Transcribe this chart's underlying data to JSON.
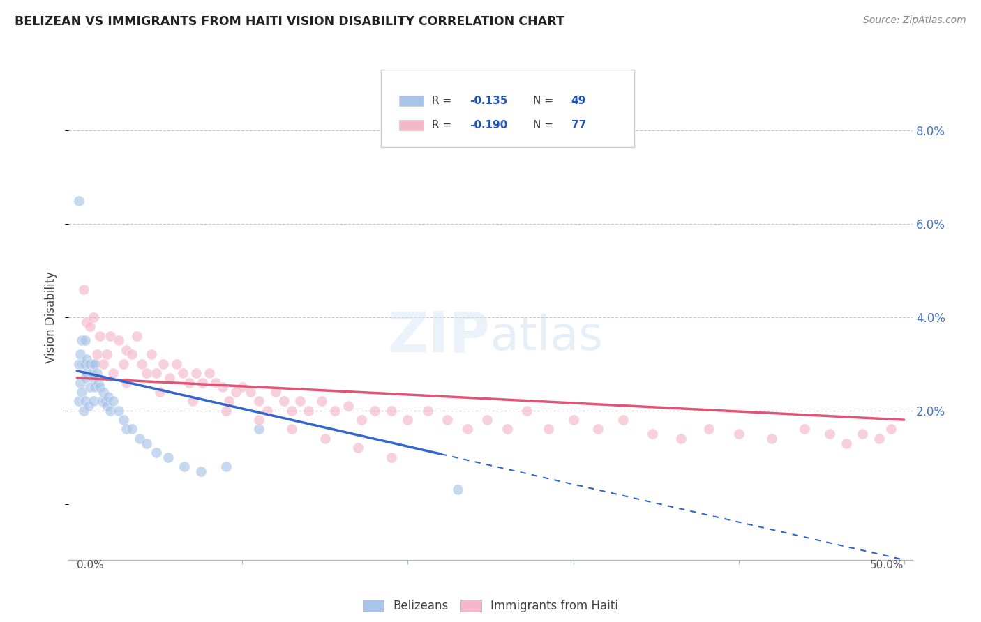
{
  "title": "BELIZEAN VS IMMIGRANTS FROM HAITI VISION DISABILITY CORRELATION CHART",
  "source": "Source: ZipAtlas.com",
  "ylabel": "Vision Disability",
  "right_yticks": [
    "2.0%",
    "4.0%",
    "6.0%",
    "8.0%"
  ],
  "right_ytick_vals": [
    0.02,
    0.04,
    0.06,
    0.08
  ],
  "xlim": [
    -0.005,
    0.505
  ],
  "ylim": [
    -0.012,
    0.092
  ],
  "watermark_zip": "ZIP",
  "watermark_atlas": "atlas",
  "legend_label1": "Belizeans",
  "legend_label2": "Immigrants from Haiti",
  "color_blue": "#a8c4e8",
  "color_pink": "#f5b8c8",
  "color_blue_line": "#3366cc",
  "color_pink_line": "#e05575",
  "trendline_blue_x0": 0.0,
  "trendline_blue_y0": 0.0285,
  "trendline_blue_x1": 0.5,
  "trendline_blue_y1": -0.012,
  "trendline_blue_solid_end": 0.22,
  "trendline_pink_x0": 0.0,
  "trendline_pink_y0": 0.027,
  "trendline_pink_x1": 0.5,
  "trendline_pink_y1": 0.018,
  "belizean_x": [
    0.001,
    0.001,
    0.001,
    0.002,
    0.002,
    0.003,
    0.003,
    0.003,
    0.004,
    0.004,
    0.005,
    0.005,
    0.005,
    0.005,
    0.006,
    0.006,
    0.007,
    0.007,
    0.008,
    0.008,
    0.009,
    0.01,
    0.01,
    0.01,
    0.011,
    0.011,
    0.012,
    0.013,
    0.014,
    0.015,
    0.016,
    0.017,
    0.018,
    0.019,
    0.02,
    0.022,
    0.025,
    0.028,
    0.03,
    0.033,
    0.038,
    0.042,
    0.048,
    0.055,
    0.065,
    0.075,
    0.09,
    0.11,
    0.23
  ],
  "belizean_y": [
    0.065,
    0.03,
    0.022,
    0.032,
    0.026,
    0.035,
    0.03,
    0.024,
    0.03,
    0.02,
    0.035,
    0.03,
    0.027,
    0.022,
    0.031,
    0.028,
    0.03,
    0.021,
    0.03,
    0.025,
    0.028,
    0.03,
    0.027,
    0.022,
    0.03,
    0.025,
    0.028,
    0.026,
    0.025,
    0.022,
    0.024,
    0.022,
    0.021,
    0.023,
    0.02,
    0.022,
    0.02,
    0.018,
    0.016,
    0.016,
    0.014,
    0.013,
    0.011,
    0.01,
    0.008,
    0.007,
    0.008,
    0.016,
    0.003
  ],
  "haiti_x": [
    0.004,
    0.006,
    0.008,
    0.01,
    0.012,
    0.014,
    0.016,
    0.018,
    0.02,
    0.022,
    0.025,
    0.028,
    0.03,
    0.033,
    0.036,
    0.039,
    0.042,
    0.045,
    0.048,
    0.052,
    0.056,
    0.06,
    0.064,
    0.068,
    0.072,
    0.076,
    0.08,
    0.084,
    0.088,
    0.092,
    0.096,
    0.1,
    0.105,
    0.11,
    0.115,
    0.12,
    0.125,
    0.13,
    0.135,
    0.14,
    0.148,
    0.156,
    0.164,
    0.172,
    0.18,
    0.19,
    0.2,
    0.212,
    0.224,
    0.236,
    0.248,
    0.26,
    0.272,
    0.285,
    0.3,
    0.315,
    0.33,
    0.348,
    0.365,
    0.382,
    0.4,
    0.42,
    0.44,
    0.455,
    0.465,
    0.475,
    0.485,
    0.492,
    0.03,
    0.05,
    0.07,
    0.09,
    0.11,
    0.13,
    0.15,
    0.17,
    0.19
  ],
  "haiti_y": [
    0.046,
    0.039,
    0.038,
    0.04,
    0.032,
    0.036,
    0.03,
    0.032,
    0.036,
    0.028,
    0.035,
    0.03,
    0.033,
    0.032,
    0.036,
    0.03,
    0.028,
    0.032,
    0.028,
    0.03,
    0.027,
    0.03,
    0.028,
    0.026,
    0.028,
    0.026,
    0.028,
    0.026,
    0.025,
    0.022,
    0.024,
    0.025,
    0.024,
    0.022,
    0.02,
    0.024,
    0.022,
    0.02,
    0.022,
    0.02,
    0.022,
    0.02,
    0.021,
    0.018,
    0.02,
    0.02,
    0.018,
    0.02,
    0.018,
    0.016,
    0.018,
    0.016,
    0.02,
    0.016,
    0.018,
    0.016,
    0.018,
    0.015,
    0.014,
    0.016,
    0.015,
    0.014,
    0.016,
    0.015,
    0.013,
    0.015,
    0.014,
    0.016,
    0.026,
    0.024,
    0.022,
    0.02,
    0.018,
    0.016,
    0.014,
    0.012,
    0.01
  ]
}
